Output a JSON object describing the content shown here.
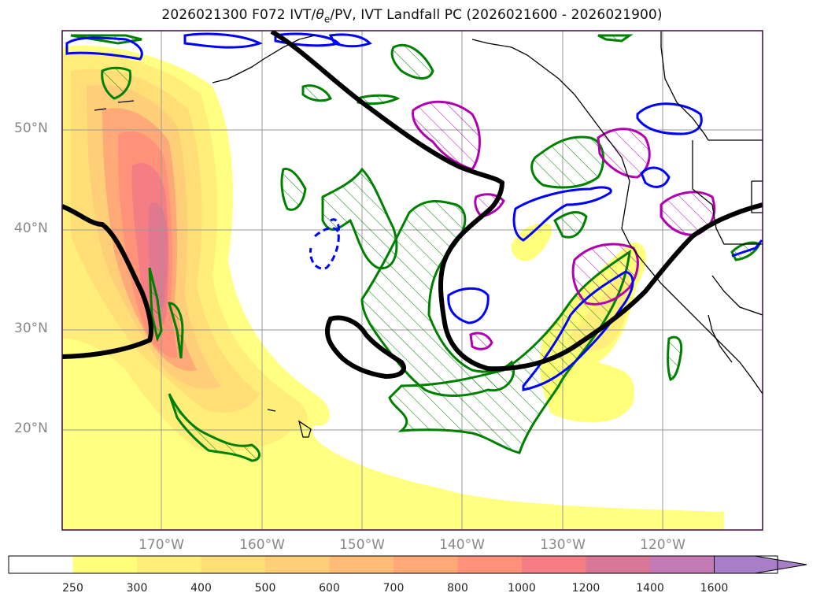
{
  "title_text": "2026021300 F072 IVT/",
  "title_theta": "θ",
  "title_sub": "e",
  "title_rest": "/PV, IVT Landfall PC (2026021600 - 2026021900)",
  "lat_labels": [
    "50°N",
    "40°N",
    "30°N",
    "20°N"
  ],
  "lon_labels": [
    "170°W",
    "160°W",
    "150°W",
    "140°W",
    "130°W",
    "120°W"
  ],
  "colorbar": {
    "levels": [
      "250",
      "300",
      "400",
      "500",
      "600",
      "700",
      "800",
      "1000",
      "1200",
      "1400",
      "1600"
    ],
    "colors": [
      "#ffffff",
      "#ffff7a",
      "#ffef7a",
      "#ffde78",
      "#ffce78",
      "#ffbc78",
      "#ffa878",
      "#ff9278",
      "#f47e84",
      "#d87898",
      "#c47ab4",
      "#a87ec8"
    ],
    "extend": "max"
  },
  "colors": {
    "ivt_shading": "#ffff7a",
    "theta_contour": "#000000",
    "pv_positive": "#008000",
    "pv_negative": "#0000ff",
    "landfall_pc": "#b000b0",
    "coastline": "#000000",
    "grid": "#999999",
    "frame": "#3a0a3a"
  }
}
